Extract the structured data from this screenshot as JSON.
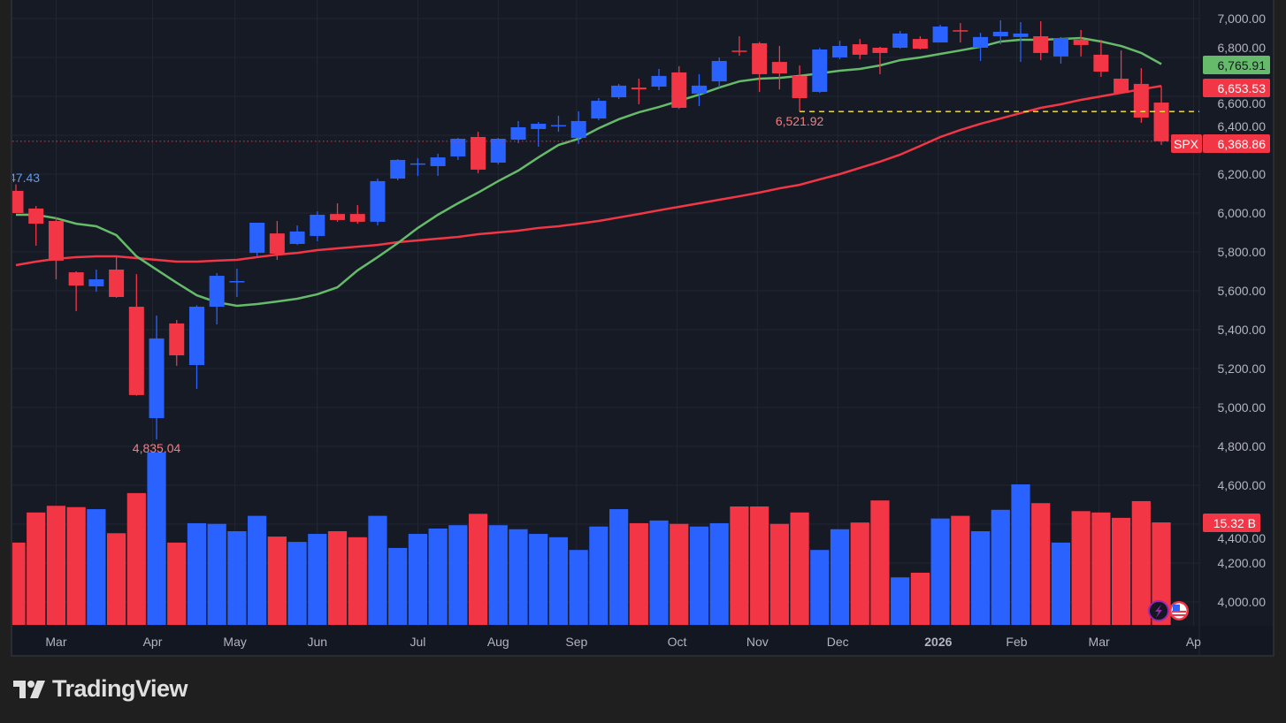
{
  "brand": {
    "name": "TradingView"
  },
  "colors": {
    "up": "#2962ff",
    "down": "#f23645",
    "ma_fast": "#66bb6a",
    "ma_slow": "#f23645",
    "bg": "#161a25",
    "grid": "#232734",
    "axis_text": "#b2b5be",
    "hi_label": "#5b9cf6",
    "lo_label": "#f77c80",
    "level_line": "#ffeb3b"
  },
  "chart_data": {
    "type": "candlestick",
    "symbol": "SPX",
    "interval": "weekly",
    "ylim": [
      3880,
      7080
    ],
    "grid": true,
    "y_ticks": [
      "7,000.00",
      "6,800.00",
      "6,600.00",
      "6,400.00",
      "6,200.00",
      "6,000.00",
      "5,800.00",
      "5,600.00",
      "5,400.00",
      "5,200.00",
      "5,000.00",
      "4,800.00",
      "4,600.00",
      "4,400.00",
      "4,200.00",
      "4,000.00"
    ],
    "y_tick_values": [
      7000,
      6800,
      6600,
      6400,
      6200,
      6000,
      5800,
      5600,
      5400,
      5200,
      5000,
      4800,
      4600,
      4400,
      4200,
      4000
    ],
    "x_ticks": [
      {
        "label": "Mar",
        "week": 2.0,
        "bold": false
      },
      {
        "label": "Apr",
        "week": 6.8,
        "bold": false
      },
      {
        "label": "May",
        "week": 10.9,
        "bold": false
      },
      {
        "label": "Jun",
        "week": 15.0,
        "bold": false
      },
      {
        "label": "Jul",
        "week": 20.0,
        "bold": false
      },
      {
        "label": "Aug",
        "week": 24.0,
        "bold": false
      },
      {
        "label": "Sep",
        "week": 27.9,
        "bold": false
      },
      {
        "label": "Oct",
        "week": 32.9,
        "bold": false
      },
      {
        "label": "Nov",
        "week": 36.9,
        "bold": false
      },
      {
        "label": "Dec",
        "week": 40.9,
        "bold": false
      },
      {
        "label": "2026",
        "week": 45.9,
        "bold": true
      },
      {
        "label": "Feb",
        "week": 49.8,
        "bold": false
      },
      {
        "label": "Mar",
        "week": 53.9,
        "bold": false
      },
      {
        "label": "Ap",
        "week": 58.6,
        "bold": false
      }
    ],
    "ohlc": [
      [
        6114,
        6147,
        6000,
        6000
      ],
      [
        6023,
        6036,
        5832,
        5945
      ],
      [
        5959,
        5977,
        5659,
        5755
      ],
      [
        5695,
        5700,
        5495,
        5627
      ],
      [
        5623,
        5709,
        5595,
        5659
      ],
      [
        5709,
        5777,
        5564,
        5568
      ],
      [
        5518,
        5686,
        5060,
        5064
      ],
      [
        4945,
        5473,
        4835.04,
        5355
      ],
      [
        5432,
        5450,
        5214,
        5268
      ],
      [
        5218,
        5525,
        5095,
        5518
      ],
      [
        5518,
        5691,
        5427,
        5677
      ],
      [
        5645,
        5714,
        5568,
        5650
      ],
      [
        5795,
        5950,
        5777,
        5950
      ],
      [
        5895,
        5959,
        5759,
        5791
      ],
      [
        5841,
        5936,
        5836,
        5905
      ],
      [
        5882,
        6009,
        5855,
        5991
      ],
      [
        5995,
        6050,
        5955,
        5964
      ],
      [
        5995,
        6041,
        5945,
        5955
      ],
      [
        5955,
        6177,
        5936,
        6164
      ],
      [
        6177,
        6277,
        6168,
        6273
      ],
      [
        6250,
        6282,
        6191,
        6255
      ],
      [
        6241,
        6305,
        6191,
        6286
      ],
      [
        6291,
        6386,
        6273,
        6382
      ],
      [
        6391,
        6418,
        6205,
        6223
      ],
      [
        6259,
        6386,
        6250,
        6382
      ],
      [
        6377,
        6473,
        6359,
        6441
      ],
      [
        6432,
        6468,
        6341,
        6459
      ],
      [
        6448,
        6500,
        6418,
        6452
      ],
      [
        6386,
        6523,
        6355,
        6473
      ],
      [
        6486,
        6591,
        6477,
        6577
      ],
      [
        6595,
        6664,
        6586,
        6655
      ],
      [
        6645,
        6691,
        6559,
        6636
      ],
      [
        6650,
        6741,
        6632,
        6705
      ],
      [
        6723,
        6755,
        6535,
        6541
      ],
      [
        6614,
        6714,
        6550,
        6655
      ],
      [
        6677,
        6800,
        6645,
        6782
      ],
      [
        6835,
        6909,
        6809,
        6830
      ],
      [
        6873,
        6880,
        6623,
        6714
      ],
      [
        6777,
        6859,
        6636,
        6718
      ],
      [
        6705,
        6759,
        6521.92,
        6591
      ],
      [
        6623,
        6849,
        6618,
        6841
      ],
      [
        6800,
        6886,
        6791,
        6859
      ],
      [
        6868,
        6895,
        6791,
        6814
      ],
      [
        6850,
        6855,
        6714,
        6823
      ],
      [
        6850,
        6936,
        6845,
        6923
      ],
      [
        6895,
        6909,
        6841,
        6845
      ],
      [
        6877,
        6968,
        6877,
        6959
      ],
      [
        6940,
        6977,
        6877,
        6935
      ],
      [
        6850,
        6927,
        6782,
        6905
      ],
      [
        6909,
        6991,
        6868,
        6932
      ],
      [
        6905,
        6982,
        6777,
        6923
      ],
      [
        6909,
        6986,
        6786,
        6823
      ],
      [
        6805,
        6905,
        6768,
        6900
      ],
      [
        6891,
        6941,
        6805,
        6864
      ],
      [
        6814,
        6891,
        6700,
        6727
      ],
      [
        6691,
        6836,
        6614,
        6618
      ],
      [
        6664,
        6745,
        6464,
        6491
      ],
      [
        6568,
        6653,
        6350,
        6368.86
      ]
    ],
    "volume_billions": [
      12.3,
      16.8,
      17.8,
      17.6,
      17.3,
      13.7,
      19.7,
      25.8,
      12.3,
      15.2,
      15.1,
      14.0,
      16.3,
      13.2,
      12.4,
      13.6,
      14.0,
      13.1,
      16.3,
      11.5,
      13.6,
      14.4,
      14.9,
      16.6,
      14.9,
      14.3,
      13.6,
      13.1,
      11.2,
      14.7,
      17.3,
      15.2,
      15.6,
      15.1,
      14.7,
      15.2,
      17.7,
      17.7,
      15.1,
      16.8,
      11.2,
      14.3,
      15.3,
      18.6,
      7.1,
      7.8,
      15.9,
      16.3,
      14.0,
      17.2,
      21.0,
      18.2,
      12.3,
      17.0,
      16.8,
      16.0,
      18.5,
      15.32
    ],
    "ma_fast": [
      5991,
      5991,
      5973,
      5945,
      5932,
      5886,
      5777,
      5709,
      5641,
      5577,
      5541,
      5523,
      5532,
      5545,
      5559,
      5582,
      5618,
      5705,
      5773,
      5845,
      5923,
      5991,
      6050,
      6105,
      6164,
      6218,
      6286,
      6350,
      6382,
      6436,
      6482,
      6518,
      6545,
      6577,
      6609,
      6645,
      6677,
      6691,
      6695,
      6705,
      6718,
      6732,
      6741,
      6759,
      6786,
      6800,
      6818,
      6836,
      6855,
      6882,
      6891,
      6891,
      6895,
      6900,
      6882,
      6859,
      6823,
      6765.91
    ],
    "ma_slow": [
      5732,
      5750,
      5764,
      5773,
      5777,
      5777,
      5768,
      5759,
      5750,
      5750,
      5755,
      5759,
      5773,
      5786,
      5795,
      5809,
      5818,
      5827,
      5836,
      5850,
      5859,
      5868,
      5877,
      5891,
      5900,
      5909,
      5923,
      5932,
      5945,
      5959,
      5977,
      5995,
      6014,
      6032,
      6050,
      6068,
      6086,
      6105,
      6127,
      6145,
      6173,
      6200,
      6232,
      6264,
      6300,
      6345,
      6391,
      6427,
      6459,
      6486,
      6514,
      6541,
      6559,
      6582,
      6600,
      6618,
      6636,
      6653.53
    ],
    "annotations": {
      "left_high_label": "47.43",
      "low_label": "4,835.04",
      "low_label_week": 7,
      "swing_low_label": "6,521.92",
      "swing_low_value": 6521.92,
      "swing_low_week": 39
    },
    "badges": {
      "ma_fast_value": "6,765.91",
      "ma_slow_value": "6,653.53",
      "symbol": "SPX",
      "last_price": "6,368.86",
      "last_price_value": 6368.86,
      "volume_value": "15.32 B"
    }
  }
}
